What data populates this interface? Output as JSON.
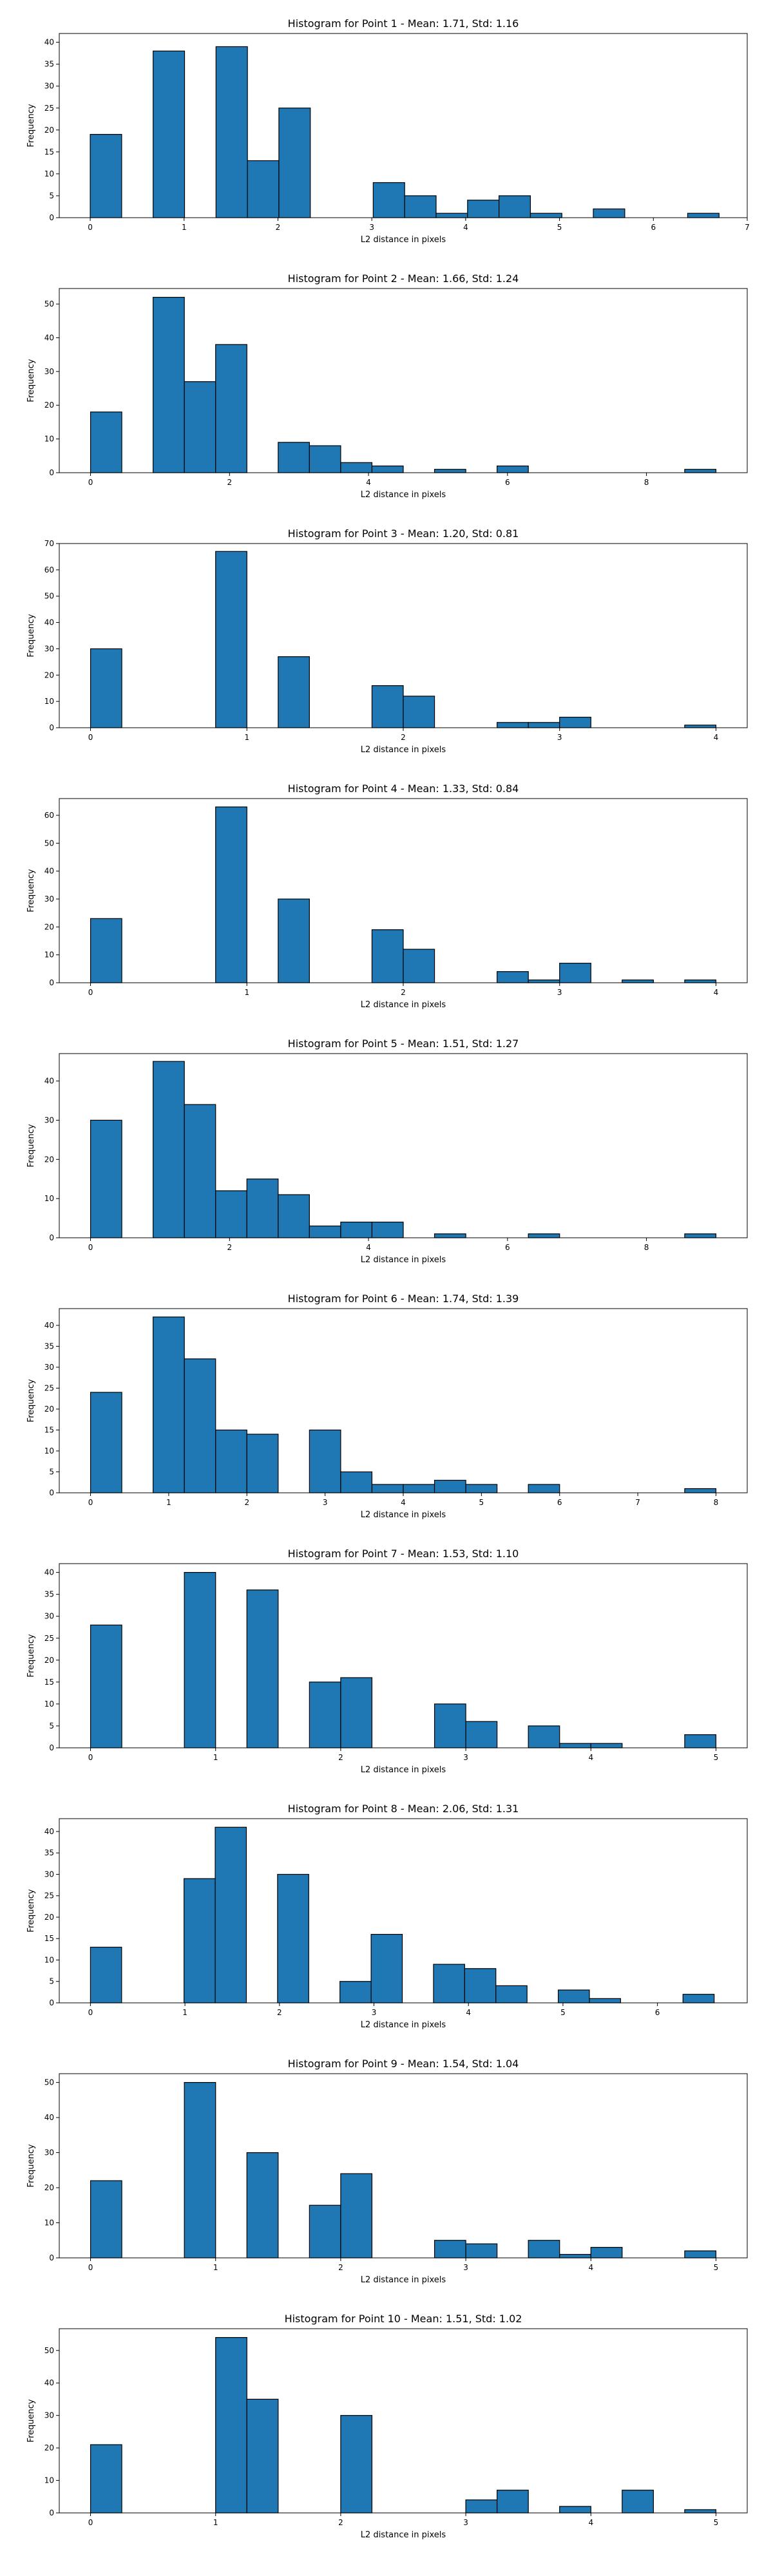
{
  "chart_data": [
    {
      "type": "bar",
      "title": "Histogram for Point 1 - Mean: 1.71, Std: 1.16",
      "xlabel": "L2 distance in pixels",
      "ylabel": "Frequency",
      "xlim": [
        -0.33,
        7.0
      ],
      "ylim": [
        0,
        42
      ],
      "xticks": [
        0,
        1,
        2,
        3,
        4,
        5,
        6,
        7
      ],
      "yticks": [
        0,
        5,
        10,
        15,
        20,
        25,
        30,
        35,
        40
      ],
      "bin_edges": [
        0.0,
        0.335,
        0.67,
        1.005,
        1.34,
        1.675,
        2.01,
        2.345,
        2.68,
        3.015,
        3.35,
        3.685,
        4.02,
        4.355,
        4.69,
        5.025,
        5.36,
        5.695,
        6.03,
        6.365,
        6.7
      ],
      "values": [
        19,
        0,
        38,
        0,
        39,
        13,
        25,
        0,
        0,
        8,
        5,
        1,
        4,
        5,
        1,
        0,
        2,
        0,
        0,
        1
      ]
    },
    {
      "type": "bar",
      "title": "Histogram for Point 2 - Mean: 1.66, Std: 1.24",
      "xlabel": "L2 distance in pixels",
      "ylabel": "Frequency",
      "xlim": [
        -0.45,
        9.45
      ],
      "ylim": [
        0,
        54.6
      ],
      "xticks": [
        0,
        2,
        4,
        6,
        8
      ],
      "yticks": [
        0,
        10,
        20,
        30,
        40,
        50
      ],
      "bin_edges": [
        0.0,
        0.45,
        0.9,
        1.35,
        1.8,
        2.25,
        2.7,
        3.15,
        3.6,
        4.05,
        4.5,
        4.95,
        5.4,
        5.85,
        6.3,
        6.75,
        7.2,
        7.65,
        8.1,
        8.55,
        9.0
      ],
      "values": [
        18,
        0,
        52,
        27,
        38,
        0,
        9,
        8,
        3,
        2,
        0,
        1,
        0,
        2,
        0,
        0,
        0,
        0,
        0,
        1
      ]
    },
    {
      "type": "bar",
      "title": "Histogram for Point 3 - Mean: 1.20, Std: 0.81",
      "xlabel": "L2 distance in pixels",
      "ylabel": "Frequency",
      "xlim": [
        -0.2,
        4.2
      ],
      "ylim": [
        0,
        70
      ],
      "xticks": [
        0,
        1,
        2,
        3,
        4
      ],
      "yticks": [
        0,
        10,
        20,
        30,
        40,
        50,
        60,
        70
      ],
      "bin_edges": [
        0.0,
        0.2,
        0.4,
        0.6,
        0.8,
        1.0,
        1.2,
        1.4,
        1.6,
        1.8,
        2.0,
        2.2,
        2.4,
        2.6,
        2.8,
        3.0,
        3.2,
        3.4,
        3.6,
        3.8,
        4.0
      ],
      "values": [
        30,
        0,
        0,
        0,
        67,
        0,
        27,
        0,
        0,
        16,
        12,
        0,
        0,
        2,
        2,
        4,
        0,
        0,
        0,
        1
      ]
    },
    {
      "type": "bar",
      "title": "Histogram for Point 4 - Mean: 1.33, Std: 0.84",
      "xlabel": "L2 distance in pixels",
      "ylabel": "Frequency",
      "xlim": [
        -0.2,
        4.2
      ],
      "ylim": [
        0,
        66
      ],
      "xticks": [
        0,
        1,
        2,
        3,
        4
      ],
      "yticks": [
        0,
        10,
        20,
        30,
        40,
        50,
        60
      ],
      "bin_edges": [
        0.0,
        0.2,
        0.4,
        0.6,
        0.8,
        1.0,
        1.2,
        1.4,
        1.6,
        1.8,
        2.0,
        2.2,
        2.4,
        2.6,
        2.8,
        3.0,
        3.2,
        3.4,
        3.6,
        3.8,
        4.0
      ],
      "values": [
        23,
        0,
        0,
        0,
        63,
        0,
        30,
        0,
        0,
        19,
        12,
        0,
        0,
        4,
        1,
        7,
        0,
        1,
        0,
        1
      ]
    },
    {
      "type": "bar",
      "title": "Histogram for Point 5 - Mean: 1.51, Std: 1.27",
      "xlabel": "L2 distance in pixels",
      "ylabel": "Frequency",
      "xlim": [
        -0.45,
        9.45
      ],
      "ylim": [
        0,
        47
      ],
      "xticks": [
        0,
        2,
        4,
        6,
        8
      ],
      "yticks": [
        0,
        10,
        20,
        30,
        40
      ],
      "bin_edges": [
        0.0,
        0.45,
        0.9,
        1.35,
        1.8,
        2.25,
        2.7,
        3.15,
        3.6,
        4.05,
        4.5,
        4.95,
        5.4,
        5.85,
        6.3,
        6.75,
        7.2,
        7.65,
        8.1,
        8.55,
        9.0
      ],
      "values": [
        30,
        0,
        45,
        34,
        12,
        15,
        11,
        3,
        4,
        4,
        0,
        1,
        0,
        0,
        1,
        0,
        0,
        0,
        0,
        1
      ]
    },
    {
      "type": "bar",
      "title": "Histogram for Point 6 - Mean: 1.74, Std: 1.39",
      "xlabel": "L2 distance in pixels",
      "ylabel": "Frequency",
      "xlim": [
        -0.4,
        8.4
      ],
      "ylim": [
        0,
        44
      ],
      "xticks": [
        0,
        1,
        2,
        3,
        4,
        5,
        6,
        7,
        8
      ],
      "yticks": [
        0,
        5,
        10,
        15,
        20,
        25,
        30,
        35,
        40
      ],
      "bin_edges": [
        0.0,
        0.4,
        0.8,
        1.2,
        1.6,
        2.0,
        2.4,
        2.8,
        3.2,
        3.6,
        4.0,
        4.4,
        4.8,
        5.2,
        5.6,
        6.0,
        6.4,
        6.8,
        7.2,
        7.6,
        8.0
      ],
      "values": [
        24,
        0,
        42,
        32,
        15,
        14,
        0,
        15,
        5,
        2,
        2,
        3,
        2,
        0,
        2,
        0,
        0,
        0,
        0,
        1
      ]
    },
    {
      "type": "bar",
      "title": "Histogram for Point 7 - Mean: 1.53, Std: 1.10",
      "xlabel": "L2 distance in pixels",
      "ylabel": "Frequency",
      "xlim": [
        -0.25,
        5.25
      ],
      "ylim": [
        0,
        42
      ],
      "xticks": [
        0,
        1,
        2,
        3,
        4,
        5
      ],
      "yticks": [
        0,
        5,
        10,
        15,
        20,
        25,
        30,
        35,
        40
      ],
      "bin_edges": [
        0.0,
        0.25,
        0.5,
        0.75,
        1.0,
        1.25,
        1.5,
        1.75,
        2.0,
        2.25,
        2.5,
        2.75,
        3.0,
        3.25,
        3.5,
        3.75,
        4.0,
        4.25,
        4.5,
        4.75,
        5.0
      ],
      "values": [
        28,
        0,
        0,
        40,
        0,
        36,
        0,
        15,
        16,
        0,
        0,
        10,
        6,
        0,
        5,
        1,
        1,
        0,
        0,
        3
      ]
    },
    {
      "type": "bar",
      "title": "Histogram for Point 8 - Mean: 2.06, Std: 1.31",
      "xlabel": "L2 distance in pixels",
      "ylabel": "Frequency",
      "xlim": [
        -0.33,
        6.95
      ],
      "ylim": [
        0,
        43
      ],
      "xticks": [
        0,
        1,
        2,
        3,
        4,
        5,
        6
      ],
      "yticks": [
        0,
        5,
        10,
        15,
        20,
        25,
        30,
        35,
        40
      ],
      "bin_edges": [
        0.0,
        0.33,
        0.66,
        0.99,
        1.32,
        1.65,
        1.98,
        2.31,
        2.64,
        2.97,
        3.3,
        3.63,
        3.96,
        4.29,
        4.62,
        4.95,
        5.28,
        5.61,
        5.94,
        6.27,
        6.6
      ],
      "values": [
        13,
        0,
        0,
        29,
        41,
        0,
        30,
        0,
        5,
        16,
        0,
        9,
        8,
        4,
        0,
        3,
        1,
        0,
        0,
        2
      ]
    },
    {
      "type": "bar",
      "title": "Histogram for Point 9 - Mean: 1.54, Std: 1.04",
      "xlabel": "L2 distance in pixels",
      "ylabel": "Frequency",
      "xlim": [
        -0.25,
        5.25
      ],
      "ylim": [
        0,
        52.5
      ],
      "xticks": [
        0,
        1,
        2,
        3,
        4,
        5
      ],
      "yticks": [
        0,
        10,
        20,
        30,
        40,
        50
      ],
      "bin_edges": [
        0.0,
        0.25,
        0.5,
        0.75,
        1.0,
        1.25,
        1.5,
        1.75,
        2.0,
        2.25,
        2.5,
        2.75,
        3.0,
        3.25,
        3.5,
        3.75,
        4.0,
        4.25,
        4.5,
        4.75,
        5.0
      ],
      "values": [
        22,
        0,
        0,
        50,
        0,
        30,
        0,
        15,
        24,
        0,
        0,
        5,
        4,
        0,
        5,
        1,
        3,
        0,
        0,
        2
      ]
    },
    {
      "type": "bar",
      "title": "Histogram for Point 10 - Mean: 1.51, Std: 1.02",
      "xlabel": "L2 distance in pixels",
      "ylabel": "Frequency",
      "xlim": [
        -0.25,
        5.25
      ],
      "ylim": [
        0,
        56.7
      ],
      "xticks": [
        0,
        1,
        2,
        3,
        4,
        5
      ],
      "yticks": [
        0,
        10,
        20,
        30,
        40,
        50
      ],
      "bin_edges": [
        0.0,
        0.25,
        0.5,
        0.75,
        1.0,
        1.25,
        1.5,
        1.75,
        2.0,
        2.25,
        2.5,
        2.75,
        3.0,
        3.25,
        3.5,
        3.75,
        4.0,
        4.25,
        4.5,
        4.75,
        5.0
      ],
      "values": [
        21,
        0,
        0,
        0,
        54,
        35,
        0,
        0,
        30,
        0,
        0,
        0,
        4,
        7,
        0,
        2,
        0,
        7,
        0,
        1
      ]
    }
  ],
  "colors": {
    "bar_fill": "#1f77b4",
    "bar_edge": "#000000",
    "axis": "#000000",
    "text": "#000000",
    "background": "#ffffff"
  }
}
